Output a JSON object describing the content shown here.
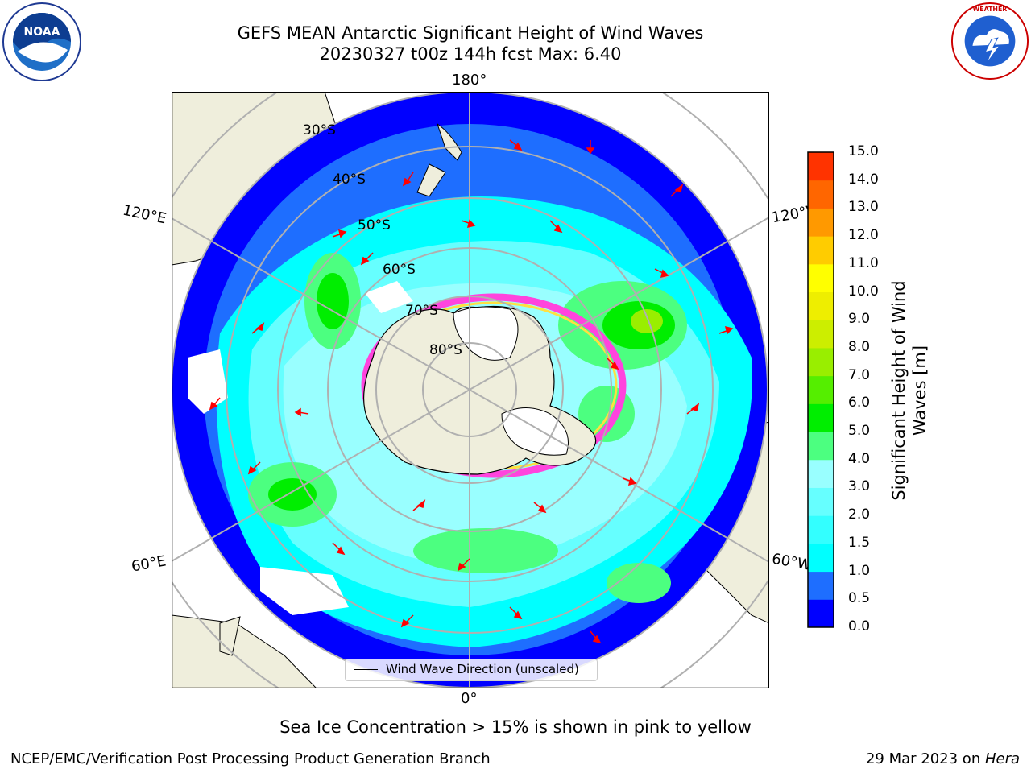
{
  "title_line1": "GEFS MEAN Antarctic Significant Height of Wind Waves",
  "title_line2": "20230327 t00z 144h fcst   Max: 6.40",
  "lon_labels": {
    "top": "180°",
    "bottom": "0°",
    "left_upper": "120°E",
    "left_lower": "60°E",
    "right_upper": "120°W",
    "right_lower": "60°W"
  },
  "lat_labels": [
    "30°S",
    "40°S",
    "50°S",
    "60°S",
    "70°S",
    "80°S"
  ],
  "legend": {
    "label": "Wind Wave Direction (unscaled)"
  },
  "colorbar": {
    "label": "Significant Height of Wind Waves [m]",
    "ticks": [
      "0.0",
      "0.5",
      "1.0",
      "1.5",
      "2.0",
      "3.0",
      "4.0",
      "5.0",
      "6.0",
      "7.0",
      "8.0",
      "9.0",
      "10.0",
      "11.0",
      "12.0",
      "13.0",
      "14.0",
      "15.0"
    ],
    "colors": [
      "#0000ff",
      "#1e6eff",
      "#00ffff",
      "#33ffff",
      "#66ffff",
      "#99ffff",
      "#4cff80",
      "#00ee00",
      "#55ee00",
      "#99ee00",
      "#ccee00",
      "#eeee00",
      "#ffff00",
      "#ffcc00",
      "#ff9900",
      "#ff6600",
      "#ff3300",
      "#ff0000"
    ]
  },
  "caption": "Sea Ice Concentration > 15% is shown in pink to yellow",
  "footer_left": "NCEP/EMC/Verification Post Processing Product Generation Branch",
  "footer_right_date": "29 Mar 2023 on ",
  "footer_right_host": "Hera",
  "logos": {
    "left": "NOAA",
    "right": "NATIONAL WEATHER SERVICE"
  },
  "colors": {
    "land": "#efeedc",
    "ice_sheet": "#ffffff",
    "grid": "#b0b0b0",
    "arrow": "#ff0000",
    "ice_edge": "#ff44dd"
  }
}
